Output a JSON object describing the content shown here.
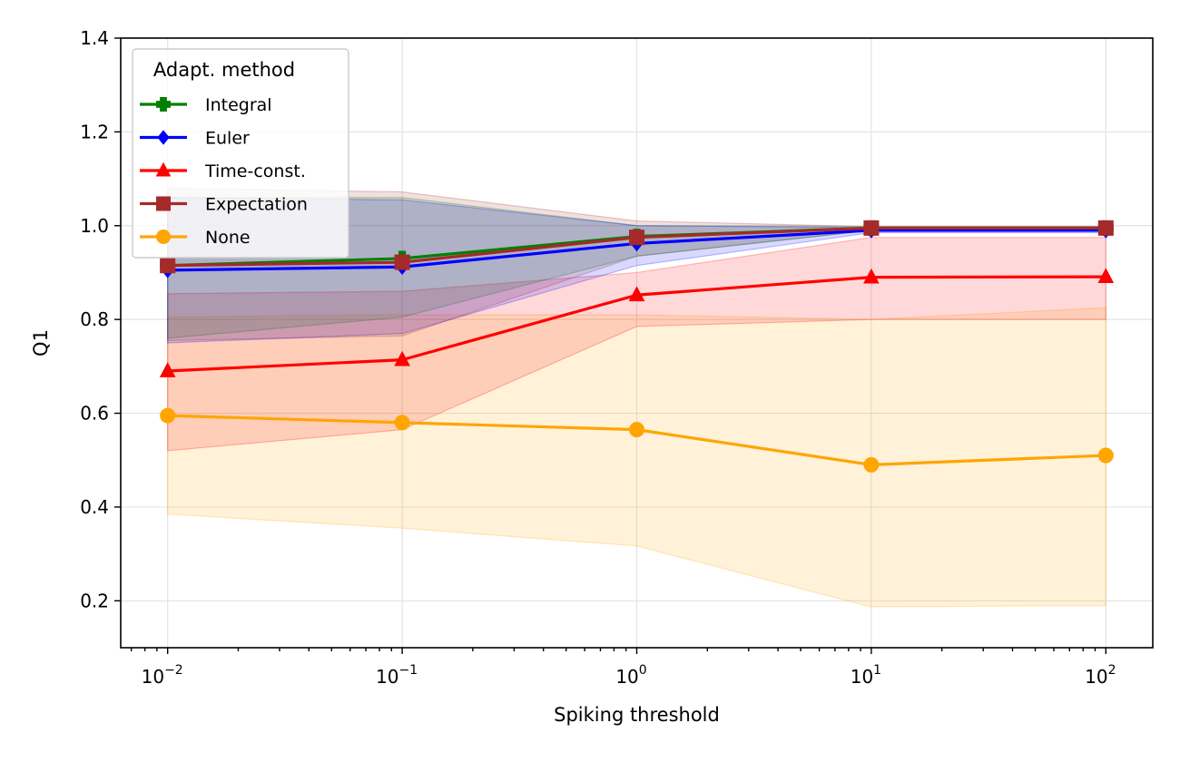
{
  "chart_data": {
    "type": "line",
    "xscale": "log",
    "x": [
      0.01,
      0.1,
      1,
      10,
      100
    ],
    "x_tick_labels": [
      {
        "base": "10",
        "exp": "−2"
      },
      {
        "base": "10",
        "exp": "−1"
      },
      {
        "base": "10",
        "exp": "0"
      },
      {
        "base": "10",
        "exp": "1"
      },
      {
        "base": "10",
        "exp": "2"
      }
    ],
    "y_ticks": [
      0.2,
      0.4,
      0.6,
      0.8,
      1.0,
      1.2,
      1.4
    ],
    "y_tick_labels": [
      "0.2",
      "0.4",
      "0.6",
      "0.8",
      "1.0",
      "1.2",
      "1.4"
    ],
    "xlim_exp": [
      -2.2,
      2.2
    ],
    "ylim": [
      0.1,
      1.4
    ],
    "xlabel": "Spiking threshold",
    "ylabel": "Q1",
    "grid": true,
    "legend": {
      "title": "Adapt. method",
      "placement": "top-left"
    },
    "series": [
      {
        "name": "Integral",
        "color": "#008000",
        "marker": "plus",
        "values": [
          0.915,
          0.93,
          0.977,
          0.995,
          0.995
        ],
        "band_lower": [
          0.76,
          0.805,
          0.935,
          0.99,
          0.99
        ],
        "band_upper": [
          1.06,
          1.06,
          1.0,
          0.998,
          0.998
        ]
      },
      {
        "name": "Euler",
        "color": "#0000ff",
        "marker": "diamond",
        "values": [
          0.905,
          0.912,
          0.962,
          0.99,
          0.99
        ],
        "band_lower": [
          0.75,
          0.77,
          0.915,
          0.985,
          0.985
        ],
        "band_upper": [
          1.06,
          1.055,
          1.0,
          0.996,
          0.996
        ]
      },
      {
        "name": "Time-const.",
        "color": "#ff0000",
        "marker": "triangle",
        "values": [
          0.69,
          0.714,
          0.852,
          0.89,
          0.891
        ],
        "band_lower": [
          0.52,
          0.565,
          0.785,
          0.8,
          0.8
        ],
        "band_upper": [
          0.855,
          0.86,
          0.9,
          0.975,
          0.975
        ]
      },
      {
        "name": "Expectation",
        "color": "#a52a2a",
        "marker": "square",
        "values": [
          0.915,
          0.922,
          0.975,
          0.995,
          0.995
        ],
        "band_lower": [
          0.755,
          0.765,
          0.935,
          0.99,
          0.99
        ],
        "band_upper": [
          1.08,
          1.072,
          1.01,
          0.998,
          0.998
        ]
      },
      {
        "name": "None",
        "color": "#ffa500",
        "marker": "circle",
        "values": [
          0.595,
          0.58,
          0.565,
          0.49,
          0.51
        ],
        "band_lower": [
          0.385,
          0.355,
          0.317,
          0.187,
          0.19
        ],
        "band_upper": [
          0.805,
          0.81,
          0.81,
          0.8,
          0.825
        ]
      }
    ]
  }
}
